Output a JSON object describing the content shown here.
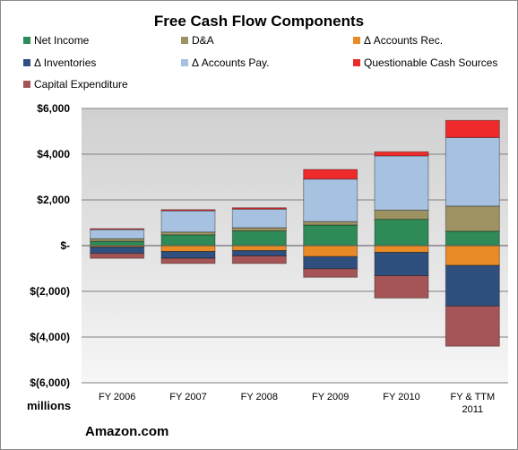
{
  "chart_data": {
    "type": "bar",
    "stacked": true,
    "title": "Free Cash Flow Components",
    "categories": [
      "FY 2006",
      "FY 2007",
      "FY 2008",
      "FY 2009",
      "FY 2010",
      "FY & TTM 2011"
    ],
    "series": [
      {
        "name": "Net Income",
        "color": "#2e8b57",
        "values": [
          190,
          476,
          645,
          902,
          1152,
          631
        ]
      },
      {
        "name": "D&A",
        "color": "#9c9262",
        "values": [
          110,
          120,
          140,
          150,
          400,
          1100
        ]
      },
      {
        "name": "Δ Accounts Rec.",
        "color": "#e88a25",
        "values": [
          -60,
          -255,
          -218,
          -481,
          -295,
          -866
        ]
      },
      {
        "name": "Δ Inventories",
        "color": "#2f4f7f",
        "values": [
          -280,
          -303,
          -232,
          -531,
          -1019,
          -1777
        ]
      },
      {
        "name": "Δ Accounts Pay.",
        "color": "#a7c1e0",
        "values": [
          402,
          928,
          812,
          1859,
          2373,
          2997
        ]
      },
      {
        "name": "Questionable Cash Sources",
        "color": "#ee2a2a",
        "values": [
          40,
          50,
          60,
          420,
          180,
          750
        ]
      },
      {
        "name": "Capital Expenditure",
        "color": "#a55555",
        "values": [
          -216,
          -224,
          -333,
          -373,
          -979,
          -1758
        ]
      }
    ],
    "ylim": [
      -6000,
      6000
    ],
    "yticks": [
      6000,
      4000,
      2000,
      0,
      -2000,
      -4000,
      -6000
    ],
    "ytick_labels": [
      "$6,000",
      "$4,000",
      "$2,000",
      "$-",
      "$(2,000)",
      "$(4,000)",
      "$(6,000)"
    ],
    "ylabel": "millions",
    "legend_placement": "top",
    "grid": true
  },
  "source": "Amazon.com"
}
